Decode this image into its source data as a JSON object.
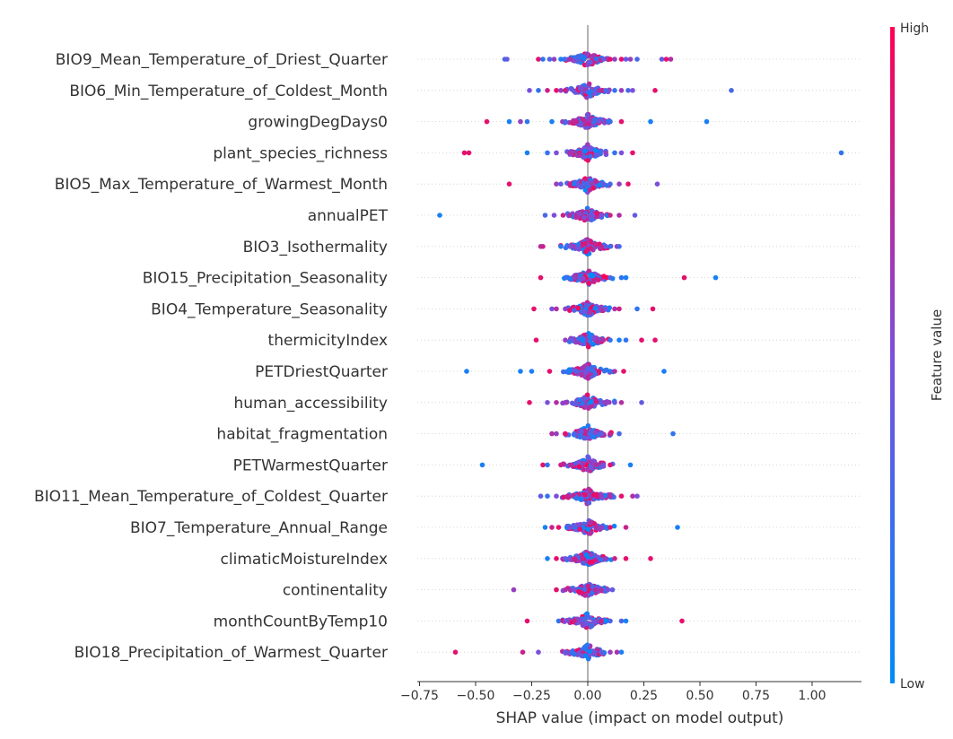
{
  "chart_data": {
    "type": "scatter",
    "subtype": "shap-beeswarm",
    "xlabel": "SHAP value (impact on model output)",
    "xlim": [
      -0.76,
      1.22
    ],
    "xticks": [
      -0.75,
      -0.5,
      -0.25,
      0.0,
      0.25,
      0.5,
      0.75,
      1.0
    ],
    "xtick_labels": [
      "−0.75",
      "−0.50",
      "−0.25",
      "0.00",
      "0.25",
      "0.50",
      "0.75",
      "1.00"
    ],
    "colorbar": {
      "label": "Feature value",
      "high_label": "High",
      "low_label": "Low",
      "low_color": "#008bfb",
      "high_color": "#ff0052"
    },
    "zero_line": true,
    "row_grid": "dotted",
    "features": [
      {
        "name": "BIO9_Mean_Temperature_of_Driest_Quarter",
        "points": [
          [
            -0.37,
            0.3
          ],
          [
            -0.36,
            0.4
          ],
          [
            -0.22,
            0.9
          ],
          [
            -0.2,
            0.2
          ],
          [
            -0.17,
            0.3
          ],
          [
            -0.15,
            0.6
          ],
          [
            -0.12,
            0.1
          ],
          [
            -0.1,
            0.3
          ],
          [
            -0.08,
            0.7
          ],
          [
            0.07,
            0.4
          ],
          [
            0.1,
            0.9
          ],
          [
            0.12,
            0.6
          ],
          [
            0.15,
            0.9
          ],
          [
            0.17,
            0.4
          ],
          [
            0.19,
            0.6
          ],
          [
            0.22,
            0.3
          ],
          [
            0.33,
            0.4
          ],
          [
            0.35,
            0.9
          ],
          [
            0.37,
            0.7
          ]
        ]
      },
      {
        "name": "BIO6_Min_Temperature_of_Coldest_Month",
        "points": [
          [
            -0.26,
            0.5
          ],
          [
            -0.22,
            0.2
          ],
          [
            -0.18,
            0.8
          ],
          [
            -0.14,
            0.9
          ],
          [
            -0.12,
            0.6
          ],
          [
            -0.1,
            0.8
          ],
          [
            0.05,
            0.7
          ],
          [
            0.08,
            0.3
          ],
          [
            0.12,
            0.2
          ],
          [
            0.15,
            0.6
          ],
          [
            0.18,
            0.3
          ],
          [
            0.2,
            0.5
          ],
          [
            0.3,
            0.9
          ],
          [
            0.64,
            0.3
          ]
        ]
      },
      {
        "name": "growingDegDays0",
        "points": [
          [
            -0.45,
            0.9
          ],
          [
            -0.35,
            0.1
          ],
          [
            -0.3,
            0.6
          ],
          [
            -0.27,
            0.2
          ],
          [
            -0.16,
            0.1
          ],
          [
            -0.1,
            0.3
          ],
          [
            -0.05,
            0.8
          ],
          [
            0.05,
            0.5
          ],
          [
            0.1,
            0.2
          ],
          [
            0.15,
            0.9
          ],
          [
            0.28,
            0.1
          ],
          [
            0.53,
            0.1
          ]
        ]
      },
      {
        "name": "plant_species_richness",
        "points": [
          [
            -0.55,
            0.9
          ],
          [
            -0.53,
            0.9
          ],
          [
            -0.27,
            0.1
          ],
          [
            -0.18,
            0.2
          ],
          [
            -0.14,
            0.5
          ],
          [
            -0.08,
            0.7
          ],
          [
            0.08,
            0.6
          ],
          [
            0.12,
            0.2
          ],
          [
            0.15,
            0.5
          ],
          [
            0.2,
            0.9
          ],
          [
            1.13,
            0.2
          ]
        ]
      },
      {
        "name": "BIO5_Max_Temperature_of_Warmest_Month",
        "points": [
          [
            -0.35,
            0.9
          ],
          [
            -0.14,
            0.6
          ],
          [
            -0.12,
            0.4
          ],
          [
            -0.08,
            0.8
          ],
          [
            0.07,
            0.4
          ],
          [
            0.1,
            0.3
          ],
          [
            0.14,
            0.6
          ],
          [
            0.18,
            0.9
          ],
          [
            0.31,
            0.5
          ]
        ]
      },
      {
        "name": "annualPET",
        "points": [
          [
            -0.66,
            0.1
          ],
          [
            -0.19,
            0.3
          ],
          [
            -0.15,
            0.5
          ],
          [
            -0.11,
            0.8
          ],
          [
            -0.08,
            0.7
          ],
          [
            0.06,
            0.5
          ],
          [
            0.1,
            0.8
          ],
          [
            0.14,
            0.7
          ],
          [
            0.21,
            0.4
          ]
        ]
      },
      {
        "name": "BIO3_Isothermality",
        "points": [
          [
            -0.21,
            0.7
          ],
          [
            -0.2,
            0.8
          ],
          [
            -0.12,
            0.2
          ],
          [
            -0.08,
            0.5
          ],
          [
            0.08,
            0.4
          ],
          [
            0.1,
            0.2
          ],
          [
            0.13,
            0.6
          ],
          [
            0.14,
            0.3
          ]
        ]
      },
      {
        "name": "BIO15_Precipitation_Seasonality",
        "points": [
          [
            -0.21,
            0.9
          ],
          [
            -0.1,
            0.2
          ],
          [
            -0.06,
            0.6
          ],
          [
            0.1,
            0.3
          ],
          [
            0.15,
            0.2
          ],
          [
            0.17,
            0.1
          ],
          [
            0.43,
            0.9
          ],
          [
            0.57,
            0.1
          ]
        ]
      },
      {
        "name": "BIO4_Temperature_Seasonality",
        "points": [
          [
            -0.24,
            0.9
          ],
          [
            -0.16,
            0.5
          ],
          [
            -0.14,
            0.7
          ],
          [
            -0.1,
            0.6
          ],
          [
            0.08,
            0.5
          ],
          [
            0.12,
            0.7
          ],
          [
            0.14,
            0.8
          ],
          [
            0.22,
            0.2
          ],
          [
            0.29,
            0.9
          ]
        ]
      },
      {
        "name": "thermicityIndex",
        "points": [
          [
            -0.23,
            0.9
          ],
          [
            -0.1,
            0.6
          ],
          [
            -0.07,
            0.4
          ],
          [
            0.07,
            0.7
          ],
          [
            0.1,
            0.2
          ],
          [
            0.14,
            0.1
          ],
          [
            0.17,
            0.2
          ],
          [
            0.24,
            0.9
          ],
          [
            0.3,
            0.9
          ]
        ]
      },
      {
        "name": "PETDriestQuarter",
        "points": [
          [
            -0.54,
            0.1
          ],
          [
            -0.3,
            0.1
          ],
          [
            -0.25,
            0.1
          ],
          [
            -0.17,
            0.9
          ],
          [
            -0.08,
            0.1
          ],
          [
            -0.05,
            0.3
          ],
          [
            0.05,
            0.9
          ],
          [
            0.1,
            0.2
          ],
          [
            0.12,
            0.7
          ],
          [
            0.16,
            0.9
          ],
          [
            0.34,
            0.1
          ]
        ]
      },
      {
        "name": "human_accessibility",
        "points": [
          [
            -0.26,
            0.9
          ],
          [
            -0.18,
            0.5
          ],
          [
            -0.14,
            0.7
          ],
          [
            -0.1,
            0.6
          ],
          [
            0.08,
            0.6
          ],
          [
            0.12,
            0.4
          ],
          [
            0.15,
            0.7
          ],
          [
            0.24,
            0.4
          ]
        ]
      },
      {
        "name": "habitat_fragmentation",
        "points": [
          [
            -0.16,
            0.7
          ],
          [
            -0.14,
            0.6
          ],
          [
            -0.1,
            0.9
          ],
          [
            -0.06,
            0.3
          ],
          [
            0.06,
            0.4
          ],
          [
            0.1,
            0.8
          ],
          [
            0.14,
            0.3
          ],
          [
            0.38,
            0.2
          ]
        ]
      },
      {
        "name": "PETWarmestQuarter",
        "points": [
          [
            -0.47,
            0.1
          ],
          [
            -0.2,
            0.9
          ],
          [
            -0.18,
            0.2
          ],
          [
            -0.12,
            0.8
          ],
          [
            -0.08,
            0.7
          ],
          [
            0.07,
            0.5
          ],
          [
            0.1,
            0.9
          ],
          [
            0.19,
            0.1
          ]
        ]
      },
      {
        "name": "BIO11_Mean_Temperature_of_Coldest_Quarter",
        "points": [
          [
            -0.21,
            0.4
          ],
          [
            -0.18,
            0.2
          ],
          [
            -0.14,
            0.5
          ],
          [
            -0.09,
            0.8
          ],
          [
            0.06,
            0.6
          ],
          [
            0.1,
            0.7
          ],
          [
            0.15,
            0.9
          ],
          [
            0.2,
            0.7
          ],
          [
            0.22,
            0.5
          ]
        ]
      },
      {
        "name": "BIO7_Temperature_Annual_Range",
        "points": [
          [
            -0.19,
            0.1
          ],
          [
            -0.16,
            0.8
          ],
          [
            -0.13,
            0.9
          ],
          [
            -0.08,
            0.5
          ],
          [
            0.06,
            0.6
          ],
          [
            0.1,
            0.9
          ],
          [
            0.17,
            0.8
          ],
          [
            0.4,
            0.1
          ]
        ]
      },
      {
        "name": "climaticMoistureIndex",
        "points": [
          [
            -0.18,
            0.1
          ],
          [
            -0.14,
            0.9
          ],
          [
            -0.1,
            0.4
          ],
          [
            -0.06,
            0.8
          ],
          [
            0.08,
            0.6
          ],
          [
            0.12,
            0.8
          ],
          [
            0.17,
            0.9
          ],
          [
            0.28,
            0.9
          ]
        ]
      },
      {
        "name": "continentality",
        "points": [
          [
            -0.33,
            0.6
          ],
          [
            -0.14,
            0.9
          ],
          [
            -0.1,
            0.7
          ],
          [
            -0.06,
            0.5
          ],
          [
            0.06,
            0.7
          ],
          [
            0.09,
            0.5
          ],
          [
            0.11,
            0.4
          ]
        ]
      },
      {
        "name": "monthCountByTemp10",
        "points": [
          [
            -0.27,
            0.9
          ],
          [
            -0.13,
            0.2
          ],
          [
            -0.1,
            0.5
          ],
          [
            -0.06,
            0.8
          ],
          [
            0.06,
            0.8
          ],
          [
            0.1,
            0.3
          ],
          [
            0.15,
            0.3
          ],
          [
            0.17,
            0.1
          ],
          [
            0.42,
            0.9
          ]
        ]
      },
      {
        "name": "BIO18_Precipitation_of_Warmest_Quarter",
        "points": [
          [
            -0.59,
            0.9
          ],
          [
            -0.29,
            0.8
          ],
          [
            -0.22,
            0.5
          ],
          [
            -0.1,
            0.4
          ],
          [
            -0.07,
            0.2
          ],
          [
            0.06,
            0.4
          ],
          [
            0.1,
            0.6
          ],
          [
            0.13,
            0.7
          ],
          [
            0.15,
            0.1
          ]
        ]
      }
    ]
  }
}
